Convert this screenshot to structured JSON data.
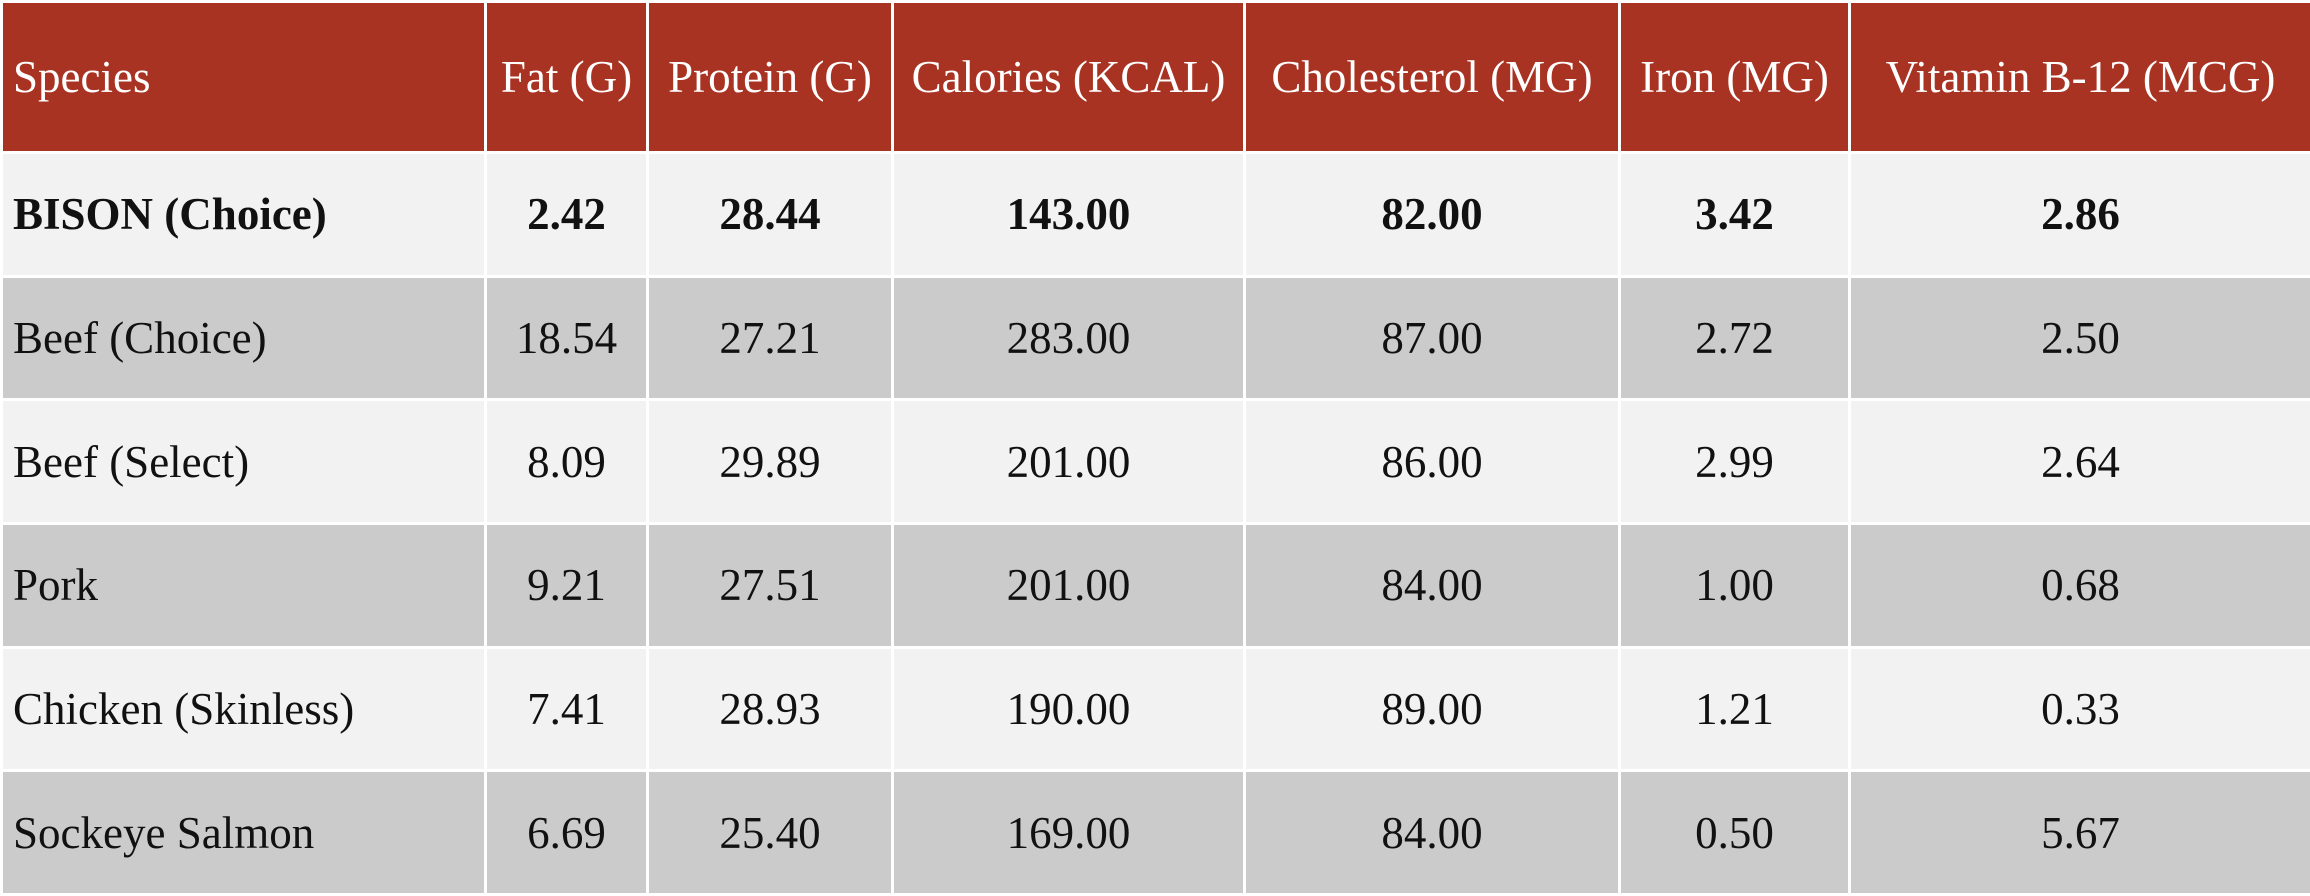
{
  "table": {
    "header_color": "#a93322",
    "row_colors": [
      "#f2f2f2",
      "#cbcbcb"
    ],
    "columns": [
      "Species",
      "Fat (G)",
      "Protein (G)",
      "Calories (KCAL)",
      "Cholesterol (MG)",
      "Iron (MG)",
      "Vitamin B-12 (MCG)"
    ],
    "rows": [
      {
        "species": "BISON (Choice)",
        "fat": "2.42",
        "protein": "28.44",
        "calories": "143.00",
        "cholesterol": "82.00",
        "iron": "3.42",
        "b12": "2.86",
        "bold": true
      },
      {
        "species": "Beef (Choice)",
        "fat": "18.54",
        "protein": "27.21",
        "calories": "283.00",
        "cholesterol": "87.00",
        "iron": "2.72",
        "b12": "2.50"
      },
      {
        "species": "Beef (Select)",
        "fat": "8.09",
        "protein": "29.89",
        "calories": "201.00",
        "cholesterol": "86.00",
        "iron": "2.99",
        "b12": "2.64"
      },
      {
        "species": "Pork",
        "fat": "9.21",
        "protein": "27.51",
        "calories": "201.00",
        "cholesterol": "84.00",
        "iron": "1.00",
        "b12": "0.68"
      },
      {
        "species": "Chicken (Skinless)",
        "fat": "7.41",
        "protein": "28.93",
        "calories": "190.00",
        "cholesterol": "89.00",
        "iron": "1.21",
        "b12": "0.33"
      },
      {
        "species": "Sockeye Salmon",
        "fat": "6.69",
        "protein": "25.40",
        "calories": "169.00",
        "cholesterol": "84.00",
        "iron": "0.50",
        "b12": "5.67"
      }
    ]
  }
}
